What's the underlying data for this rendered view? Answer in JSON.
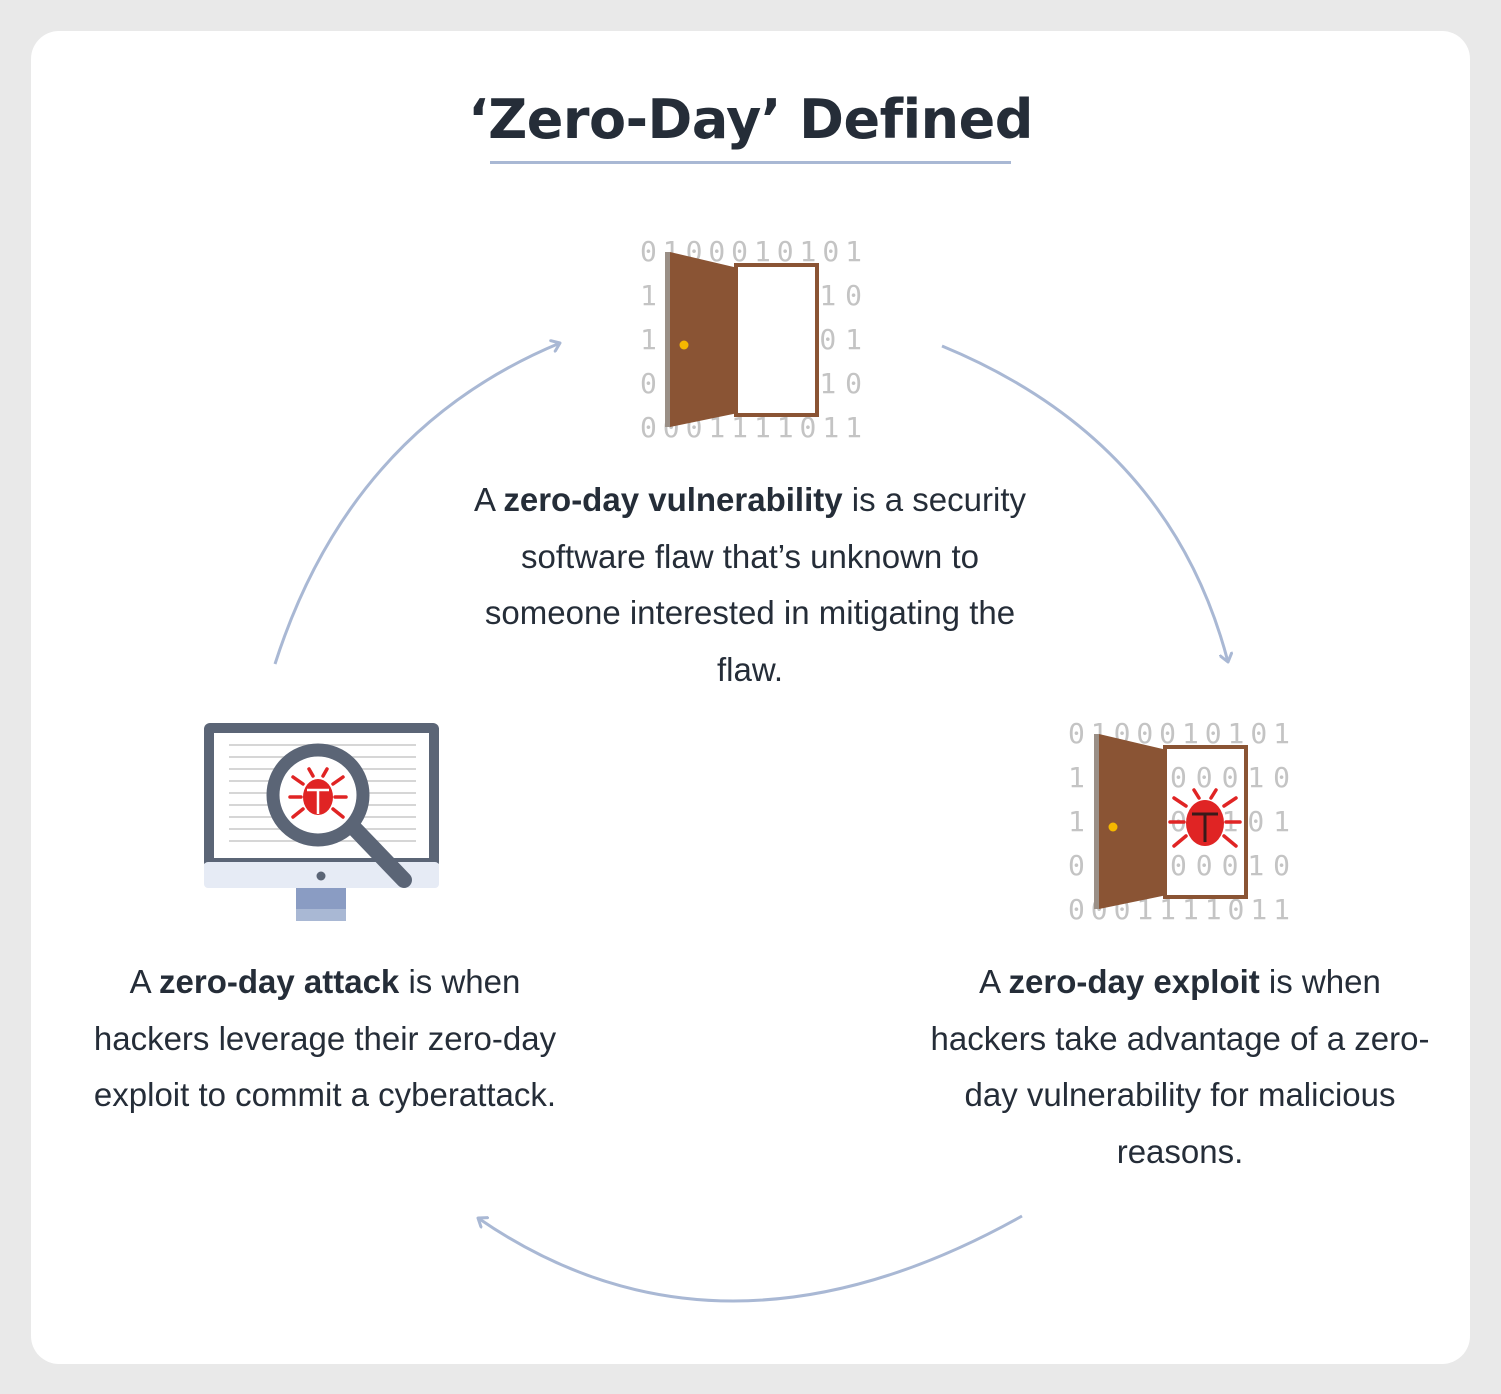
{
  "title": "‘Zero-Day’ Defined",
  "binary_rows": [
    "0100010101",
    "1  00010",
    "1  01101",
    "0  00010",
    "0001111011"
  ],
  "vulnerability": {
    "prefix": "A ",
    "term": "zero-day vulnerability",
    "suffix": " is a security software flaw that’s unknown to someone interested in mitigating the flaw."
  },
  "exploit": {
    "prefix": "A ",
    "term": "zero-day exploit",
    "suffix": " is when hackers take advantage of a zero-day vulnerability for malicious reasons."
  },
  "attack": {
    "prefix": "A ",
    "term": "zero-day attack",
    "suffix": " is when hackers leverage their zero-day exploit to commit a cyberattack."
  },
  "colors": {
    "text": "#252d38",
    "arrow": "#a9b8d4",
    "door": "#8a5434",
    "bug": "#e02424",
    "monitor": "#5b6576",
    "binary": "#c4c4c4"
  },
  "icons": [
    "door-icon",
    "door-bug-icon",
    "monitor-bug-icon"
  ]
}
